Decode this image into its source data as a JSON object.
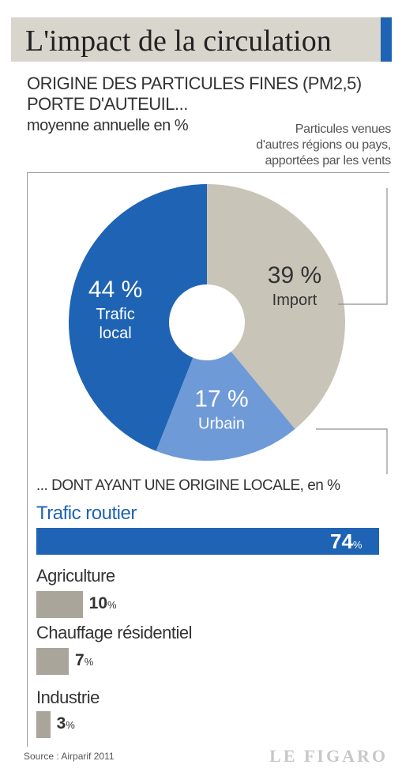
{
  "header": {
    "title": "L'impact de la circulation"
  },
  "chart_data": [
    {
      "type": "pie",
      "subtitle_lines": [
        "ORIGINE DES PARTICULES FINES (PM2,5)",
        "PORTE D'AUTEUIL..."
      ],
      "unit_label": "moyenne annuelle en %",
      "import_note_lines": [
        "Particules venues",
        "d'autres régions ou pays,",
        "apportées par les vents"
      ],
      "slices": [
        {
          "pct_text": "39 %",
          "label_lines": [
            "Import"
          ],
          "value": 39,
          "color": "#c9c4b8",
          "text_color": "#333333"
        },
        {
          "pct_text": "17 %",
          "label_lines": [
            "Urbain"
          ],
          "value": 17,
          "color": "#6f9ad8",
          "text_color": "#ffffff"
        },
        {
          "pct_text": "44 %",
          "label_lines": [
            "Trafic",
            "local"
          ],
          "value": 44,
          "color": "#1f63b4",
          "text_color": "#ffffff"
        }
      ]
    },
    {
      "type": "bar",
      "title": "... DONT AYANT UNE ORIGINE LOCALE, en %",
      "categories": [
        "Trafic routier",
        "Agriculture",
        "Chauffage résidentiel",
        "Industrie"
      ],
      "values": [
        74,
        10,
        7,
        3
      ],
      "value_labels": [
        "74",
        "10",
        "7",
        "3"
      ],
      "value_unit": "%",
      "xlim": [
        0,
        74
      ],
      "colors": [
        "#1f63b4",
        "#aaa59a",
        "#aaa59a",
        "#aaa59a"
      ]
    }
  ],
  "footer": {
    "source": "Source : Airparif 2011",
    "logo": "LE FIGARO"
  }
}
